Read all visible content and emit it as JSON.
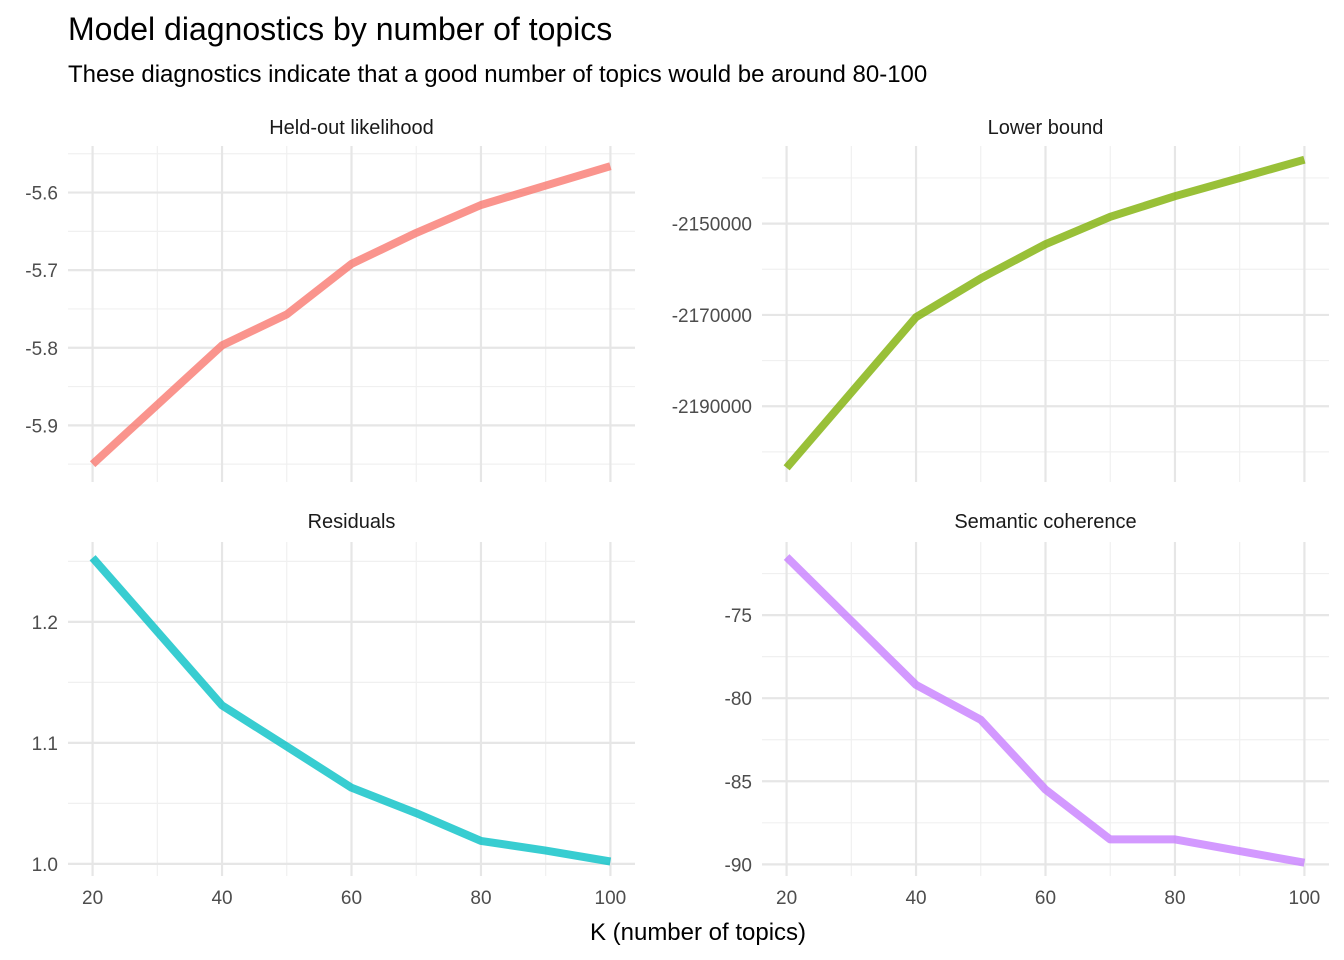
{
  "chart_data": {
    "type": "line",
    "title": "Model diagnostics by number of topics",
    "subtitle": "These diagnostics indicate that a good number of topics would be around 80-100",
    "xlabel": "K (number of topics)",
    "ylabel": "",
    "grid": true,
    "legend": "none",
    "panels": [
      {
        "name": "Held-out likelihood",
        "color": "#F8766D",
        "x": [
          20,
          40,
          50,
          60,
          70,
          80,
          90,
          100
        ],
        "y": [
          -5.95,
          -5.797,
          -5.757,
          -5.692,
          -5.652,
          -5.616,
          -5.591,
          -5.566
        ],
        "ylim": [
          -5.973,
          -5.54
        ],
        "yticks": [
          -5.9,
          -5.8,
          -5.7,
          -5.6
        ],
        "ytick_labels": [
          "-5.9",
          "-5.8",
          "-5.7",
          "-5.6"
        ],
        "xticks": [
          20,
          40,
          60,
          80,
          100
        ],
        "xtick_labels": [],
        "show_x_labels": false
      },
      {
        "name": "Lower bound",
        "color": "#7CAE00",
        "x": [
          20,
          40,
          50,
          60,
          70,
          80,
          90,
          100
        ],
        "y": [
          -2203500,
          -2170500,
          -2162000,
          -2154500,
          -2148500,
          -2144000,
          -2140000,
          -2136000
        ],
        "ylim": [
          -2206600,
          -2133000
        ],
        "yticks": [
          -2190000,
          -2170000,
          -2150000
        ],
        "ytick_labels": [
          "-2190000",
          "-2170000",
          "-2150000"
        ],
        "xticks": [
          20,
          40,
          60,
          80,
          100
        ],
        "xtick_labels": [],
        "show_x_labels": false
      },
      {
        "name": "Residuals",
        "color": "#00BFC4",
        "x": [
          20,
          40,
          50,
          60,
          70,
          80,
          90,
          100
        ],
        "y": [
          1.253,
          1.131,
          1.097,
          1.063,
          1.042,
          1.019,
          1.011,
          1.002
        ],
        "ylim": [
          0.99,
          1.266
        ],
        "yticks": [
          1.0,
          1.1,
          1.2
        ],
        "ytick_labels": [
          "1.0",
          "1.1",
          "1.2"
        ],
        "xticks": [
          20,
          40,
          60,
          80,
          100
        ],
        "xtick_labels": [
          "20",
          "40",
          "60",
          "80",
          "100"
        ],
        "show_x_labels": true
      },
      {
        "name": "Semantic coherence",
        "color": "#C77CFF",
        "x": [
          20,
          40,
          50,
          60,
          70,
          80,
          90,
          100
        ],
        "y": [
          -71.5,
          -79.2,
          -81.3,
          -85.5,
          -88.5,
          -88.5,
          -89.2,
          -89.9
        ],
        "ylim": [
          -90.7,
          -70.6
        ],
        "yticks": [
          -90,
          -85,
          -80,
          -75
        ],
        "ytick_labels": [
          "-90",
          "-85",
          "-80",
          "-75"
        ],
        "xticks": [
          20,
          40,
          60,
          80,
          100
        ],
        "xtick_labels": [
          "20",
          "40",
          "60",
          "80",
          "100"
        ],
        "show_x_labels": true
      }
    ]
  }
}
